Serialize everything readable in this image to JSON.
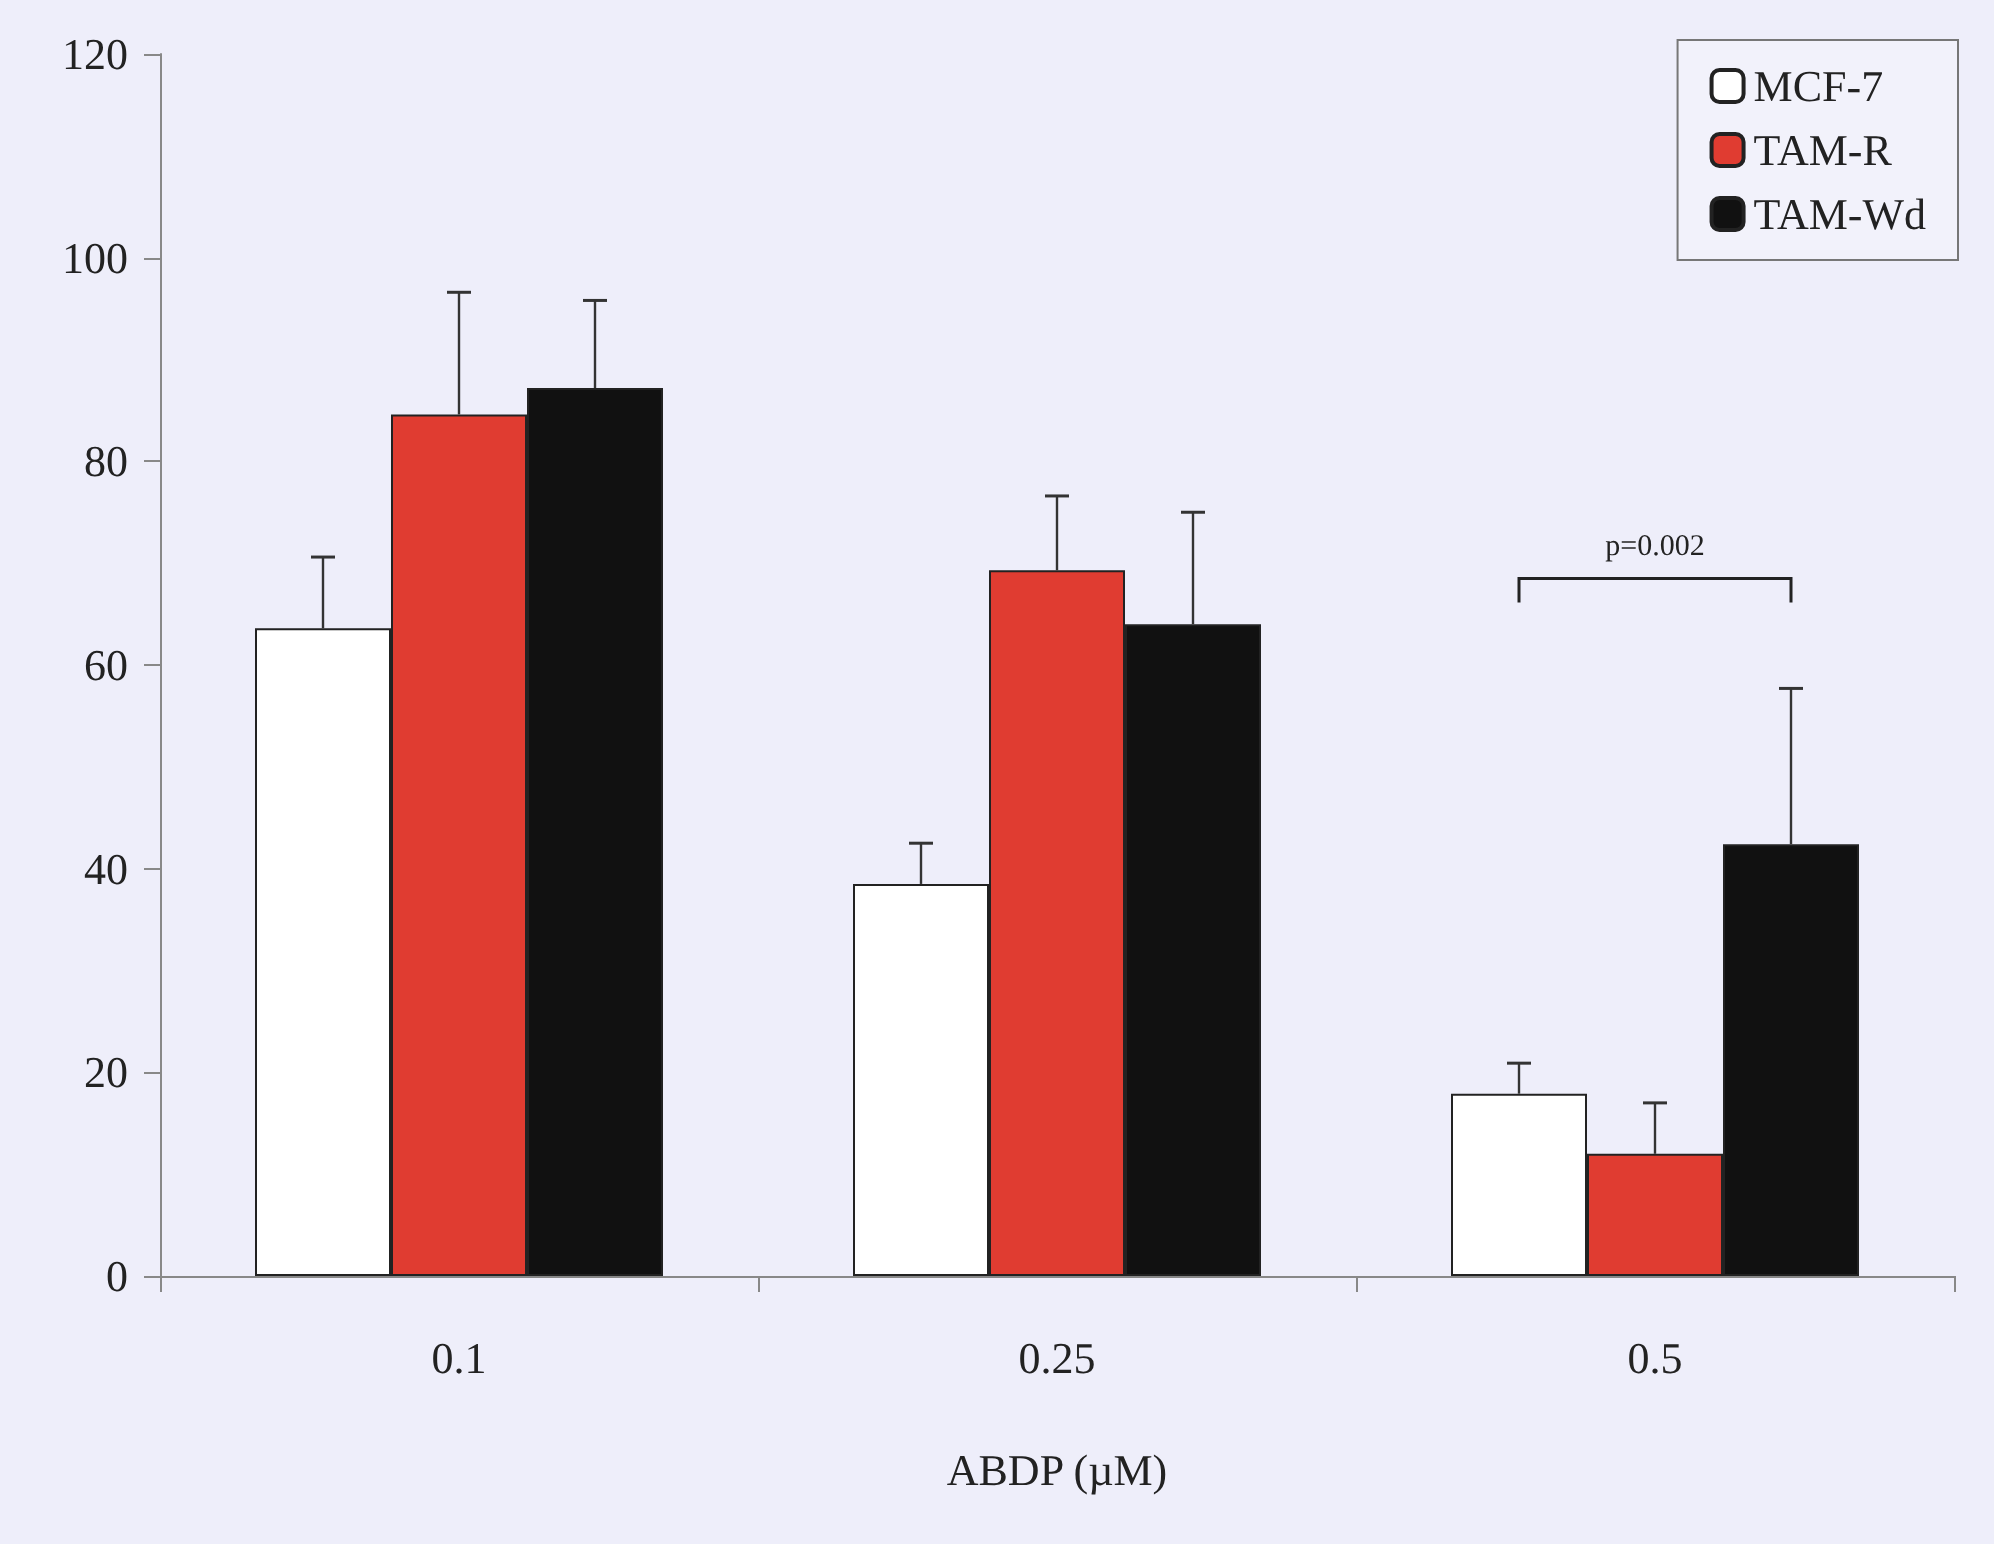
{
  "chart_data": {
    "type": "bar",
    "xlabel": "ABDP (µM)",
    "categories": [
      "0.1",
      "0.25",
      "0.5"
    ],
    "series": [
      {
        "name": "MCF-7",
        "color": "#ffffff",
        "values": [
          63.6,
          38.5,
          17.9
        ],
        "errors": [
          7,
          4,
          3
        ]
      },
      {
        "name": "TAM-R",
        "color": "#e03c31",
        "values": [
          84.6,
          69.3,
          12
        ],
        "errors": [
          12,
          7.3,
          5
        ]
      },
      {
        "name": "TAM-Wd",
        "color": "#111111",
        "values": [
          87.2,
          64,
          42.4
        ],
        "errors": [
          8.6,
          11,
          15.3
        ]
      }
    ],
    "ylim": [
      0,
      120
    ],
    "yticks": [
      0,
      20,
      40,
      60,
      80,
      100,
      120
    ],
    "grid": false,
    "legend": "top right",
    "annotations": [
      "p=0.002"
    ]
  }
}
